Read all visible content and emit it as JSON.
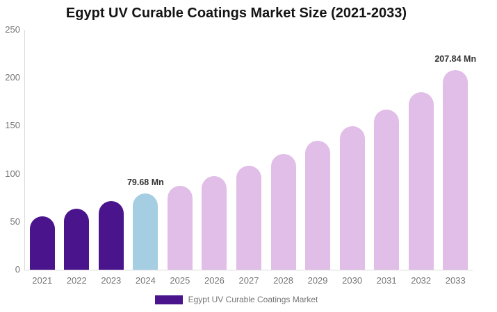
{
  "chart_data": {
    "type": "bar",
    "title": "Egypt UV Curable Coatings Market Size (2021-2033)",
    "unit": "Mn",
    "categories": [
      "2021",
      "2022",
      "2023",
      "2024",
      "2025",
      "2026",
      "2027",
      "2028",
      "2029",
      "2030",
      "2031",
      "2032",
      "2033"
    ],
    "values": [
      55.9,
      63.6,
      71.5,
      79.68,
      87.2,
      97.3,
      108.3,
      120.9,
      134.6,
      149.8,
      166.7,
      185.2,
      207.84
    ],
    "ylim": [
      0,
      250
    ],
    "yticks": [
      0,
      50,
      100,
      150,
      200,
      250
    ],
    "grid": false,
    "legend_position": "bottom",
    "bar_colors": [
      "#4A148C",
      "#4A148C",
      "#4A148C",
      "#A6CEE3",
      "#E1BEE7",
      "#E1BEE7",
      "#E1BEE7",
      "#E1BEE7",
      "#E1BEE7",
      "#E1BEE7",
      "#E1BEE7",
      "#E1BEE7",
      "#E1BEE7"
    ],
    "annotations": [
      {
        "category": "2024",
        "text": "79.68 Mn"
      },
      {
        "category": "2033",
        "text": "207.84 Mn"
      }
    ],
    "legend": {
      "items": [
        {
          "label": "Egypt UV Curable Coatings Market",
          "color": "#4A148C"
        }
      ]
    },
    "colors": {
      "historical_bars": "#4A148C",
      "base_year_bar": "#A6CEE3",
      "forecast_bars": "#E1BEE7",
      "axis_line": "#DADADA",
      "tick_text": "#757575",
      "annotation_text": "#333333",
      "title_text": "#141414",
      "legend_text": "#757575",
      "background": "#FFFFFF"
    }
  }
}
